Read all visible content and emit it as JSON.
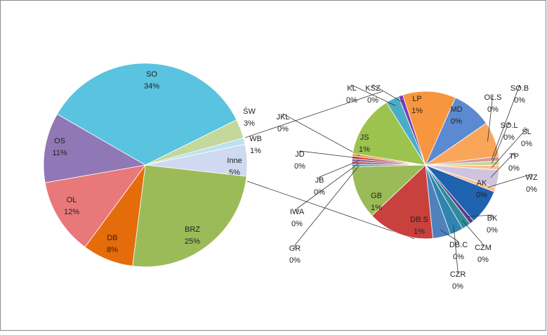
{
  "chart_data": [
    {
      "type": "pie",
      "categories": [
        "SO",
        "ŚW",
        "WB",
        "Inne",
        "BRZ",
        "DB",
        "OL",
        "OS"
      ],
      "values": [
        34,
        3,
        1,
        5,
        25,
        8,
        12,
        11
      ],
      "value_labels": [
        "34%",
        "3%",
        "1%",
        "5%",
        "25%",
        "8%",
        "12%",
        "11%"
      ],
      "colors": [
        "#5ac3e0",
        "#c4d89c",
        "#b9e2ee",
        "#cfdaf0",
        "#9bbb59",
        "#e46c0a",
        "#e8787a",
        "#9077b5"
      ]
    },
    {
      "type": "pie",
      "categories": [
        "LP",
        "MD",
        "OL.S",
        "SO.B",
        "SO.L",
        "ŚL",
        "TP",
        "WZ",
        "AK",
        "BK",
        "CZM",
        "CZR",
        "DB.C",
        "DB.S",
        "GB",
        "GR",
        "IWA",
        "JB",
        "JD",
        "JKL",
        "JS",
        "KL",
        "KSZ"
      ],
      "values": [
        0.6,
        0.45,
        0.4,
        0.05,
        0.05,
        0.05,
        0.2,
        0.05,
        0.4,
        0.05,
        0.1,
        0.15,
        0.2,
        0.75,
        0.6,
        0.03,
        0.03,
        0.03,
        0.03,
        0.03,
        0.7,
        0.15,
        0.05
      ],
      "value_labels": [
        "1%",
        "0%",
        "0%",
        "0%",
        "0%",
        "0%",
        "0%",
        "0%",
        "0%",
        "0%",
        "0%",
        "0%",
        "0%",
        "1%",
        "1%",
        "0%",
        "0%",
        "0%",
        "0%",
        "0%",
        "1%",
        "0%",
        "0%"
      ],
      "colors": [
        "#f7963f",
        "#5b8ad1",
        "#f9a65a",
        "#d99694",
        "#c4d89c",
        "#fac090",
        "#cfc4de",
        "#fabf8f",
        "#1f62b0",
        "#5b3e87",
        "#2e8b9a",
        "#2f84b0",
        "#4f81bd",
        "#c8413d",
        "#9bbb59",
        "#4bacc6",
        "#c0504d",
        "#8064a2",
        "#c0504d",
        "#f79646",
        "#9bc34e",
        "#4bacc6",
        "#7b3fb0"
      ]
    }
  ]
}
